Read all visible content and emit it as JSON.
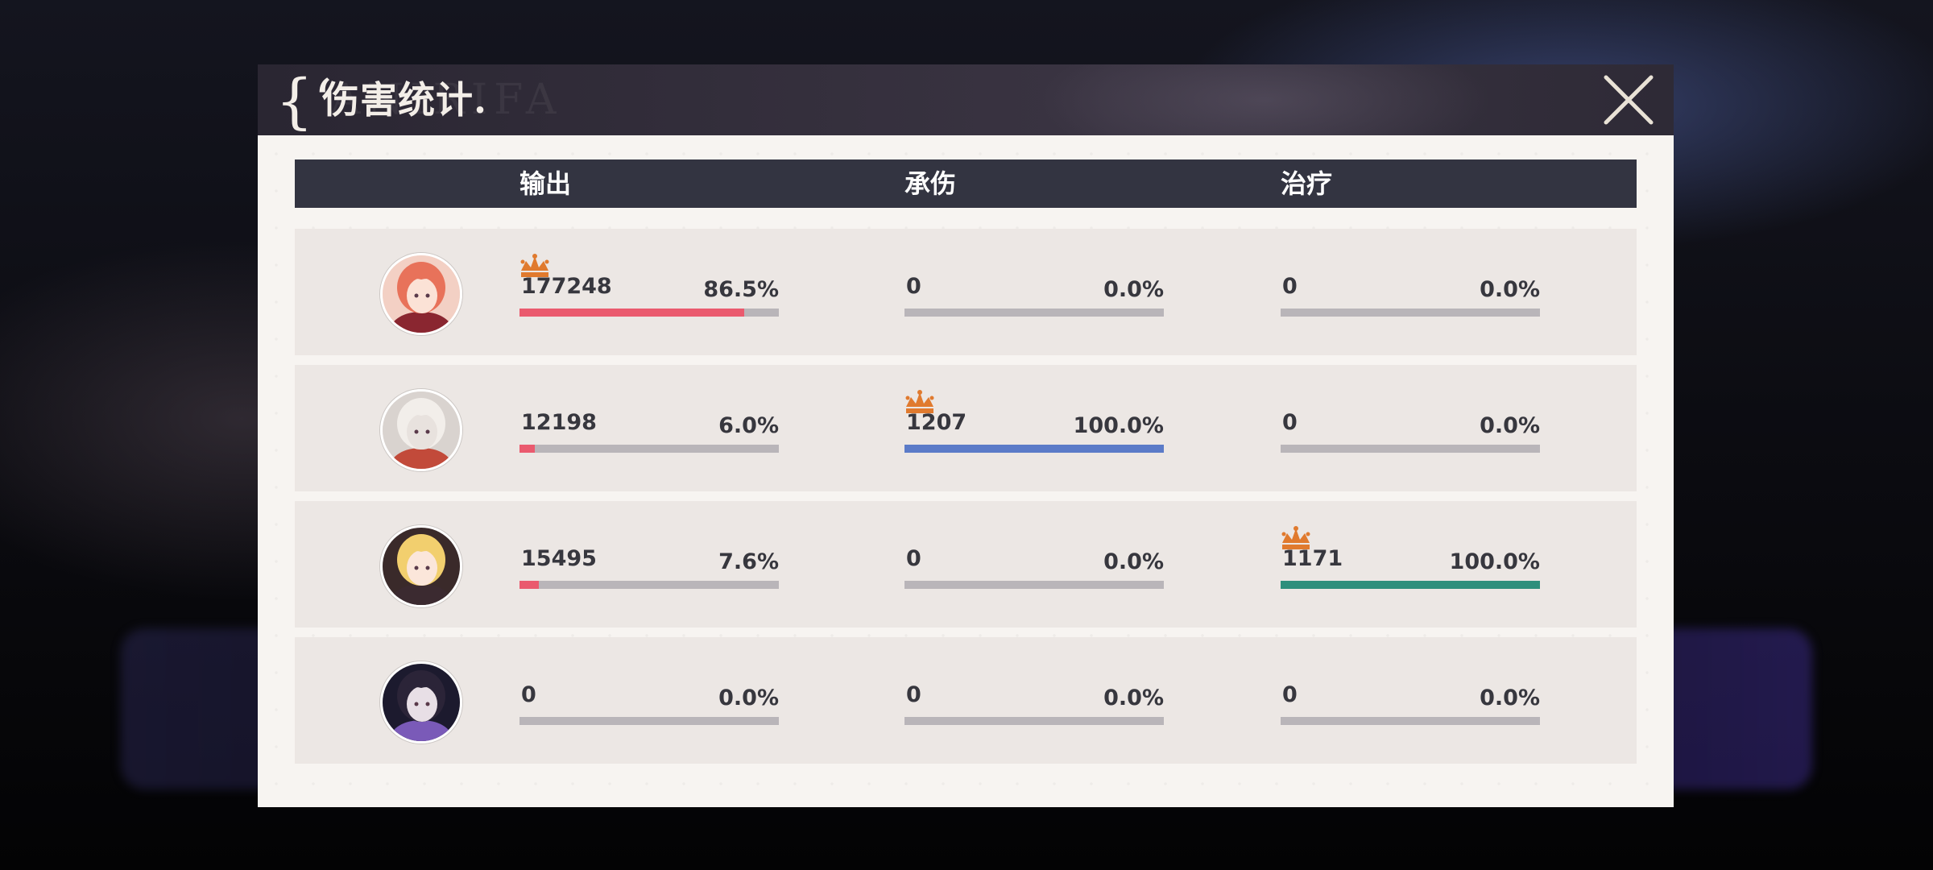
{
  "header": {
    "title_brace": "{ʻ",
    "title": "伤害统计."
  },
  "columns": {
    "output": "输出",
    "damage_taken": "承伤",
    "healing": "治疗"
  },
  "colors": {
    "output": "#ea5a6e",
    "damage_taken": "#5b7bc8",
    "healing": "#2e8f7c",
    "crown": "#e07a2e"
  },
  "rows": [
    {
      "character": "red-haired character",
      "output": {
        "value": "177248",
        "percent": "86.5%",
        "fraction": 0.865,
        "top": true
      },
      "damage_taken": {
        "value": "0",
        "percent": "0.0%",
        "fraction": 0.0,
        "top": false
      },
      "healing": {
        "value": "0",
        "percent": "0.0%",
        "fraction": 0.0,
        "top": false
      }
    },
    {
      "character": "white cat character",
      "output": {
        "value": "12198",
        "percent": "6.0%",
        "fraction": 0.06,
        "top": false
      },
      "damage_taken": {
        "value": "1207",
        "percent": "100.0%",
        "fraction": 1.0,
        "top": true
      },
      "healing": {
        "value": "0",
        "percent": "0.0%",
        "fraction": 0.0,
        "top": false
      }
    },
    {
      "character": "blonde character",
      "output": {
        "value": "15495",
        "percent": "7.6%",
        "fraction": 0.076,
        "top": false
      },
      "damage_taken": {
        "value": "0",
        "percent": "0.0%",
        "fraction": 0.0,
        "top": false
      },
      "healing": {
        "value": "1171",
        "percent": "100.0%",
        "fraction": 1.0,
        "top": true
      }
    },
    {
      "character": "dark-haired character",
      "output": {
        "value": "0",
        "percent": "0.0%",
        "fraction": 0.0,
        "top": false
      },
      "damage_taken": {
        "value": "0",
        "percent": "0.0%",
        "fraction": 0.0,
        "top": false
      },
      "healing": {
        "value": "0",
        "percent": "0.0%",
        "fraction": 0.0,
        "top": false
      }
    }
  ]
}
